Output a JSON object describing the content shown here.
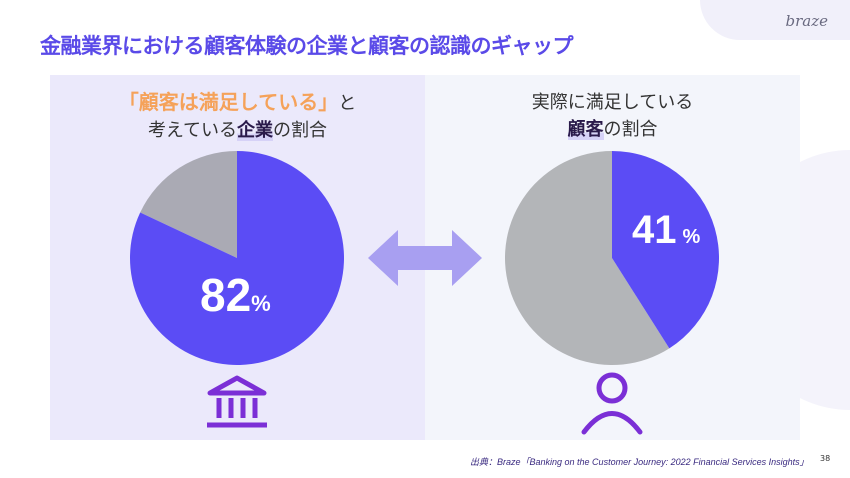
{
  "header": {
    "title": "金融業界における顧客体験の企業と顧客の認識のギャップ",
    "logo": "braze"
  },
  "left_panel": {
    "line1_highlight": "「顧客は満足している」",
    "line1_rest": "と",
    "line2_pre": "考えている",
    "line2_bold": "企業",
    "line2_post": "の割合",
    "value_label": "82",
    "unit": "%",
    "icon": "bank-icon"
  },
  "right_panel": {
    "line1": "実際に満足している",
    "line2_bold": "顧客",
    "line2_post": "の割合",
    "value_label": "41",
    "unit": "%",
    "icon": "person-icon"
  },
  "center_icon": "double-arrow-icon",
  "footer": {
    "source": "出典：Braze「Banking on the Customer Journey: 2022 Financial Services Insights」",
    "page": "38"
  },
  "colors": {
    "accent": "#5b4cf5",
    "left_rest": "#aaaab4",
    "right_rest": "#b3b5b8",
    "icon": "#7b2fd6",
    "highlight": "#f5a25a"
  },
  "chart_data": [
    {
      "type": "pie",
      "values": [
        82,
        18
      ],
      "labels": [
        "82%",
        ""
      ],
      "colors": [
        "#5b4cf5",
        "#aaaab4"
      ]
    },
    {
      "type": "pie",
      "values": [
        41,
        59
      ],
      "labels": [
        "41%",
        ""
      ],
      "colors": [
        "#5b4cf5",
        "#b3b5b8"
      ]
    }
  ]
}
